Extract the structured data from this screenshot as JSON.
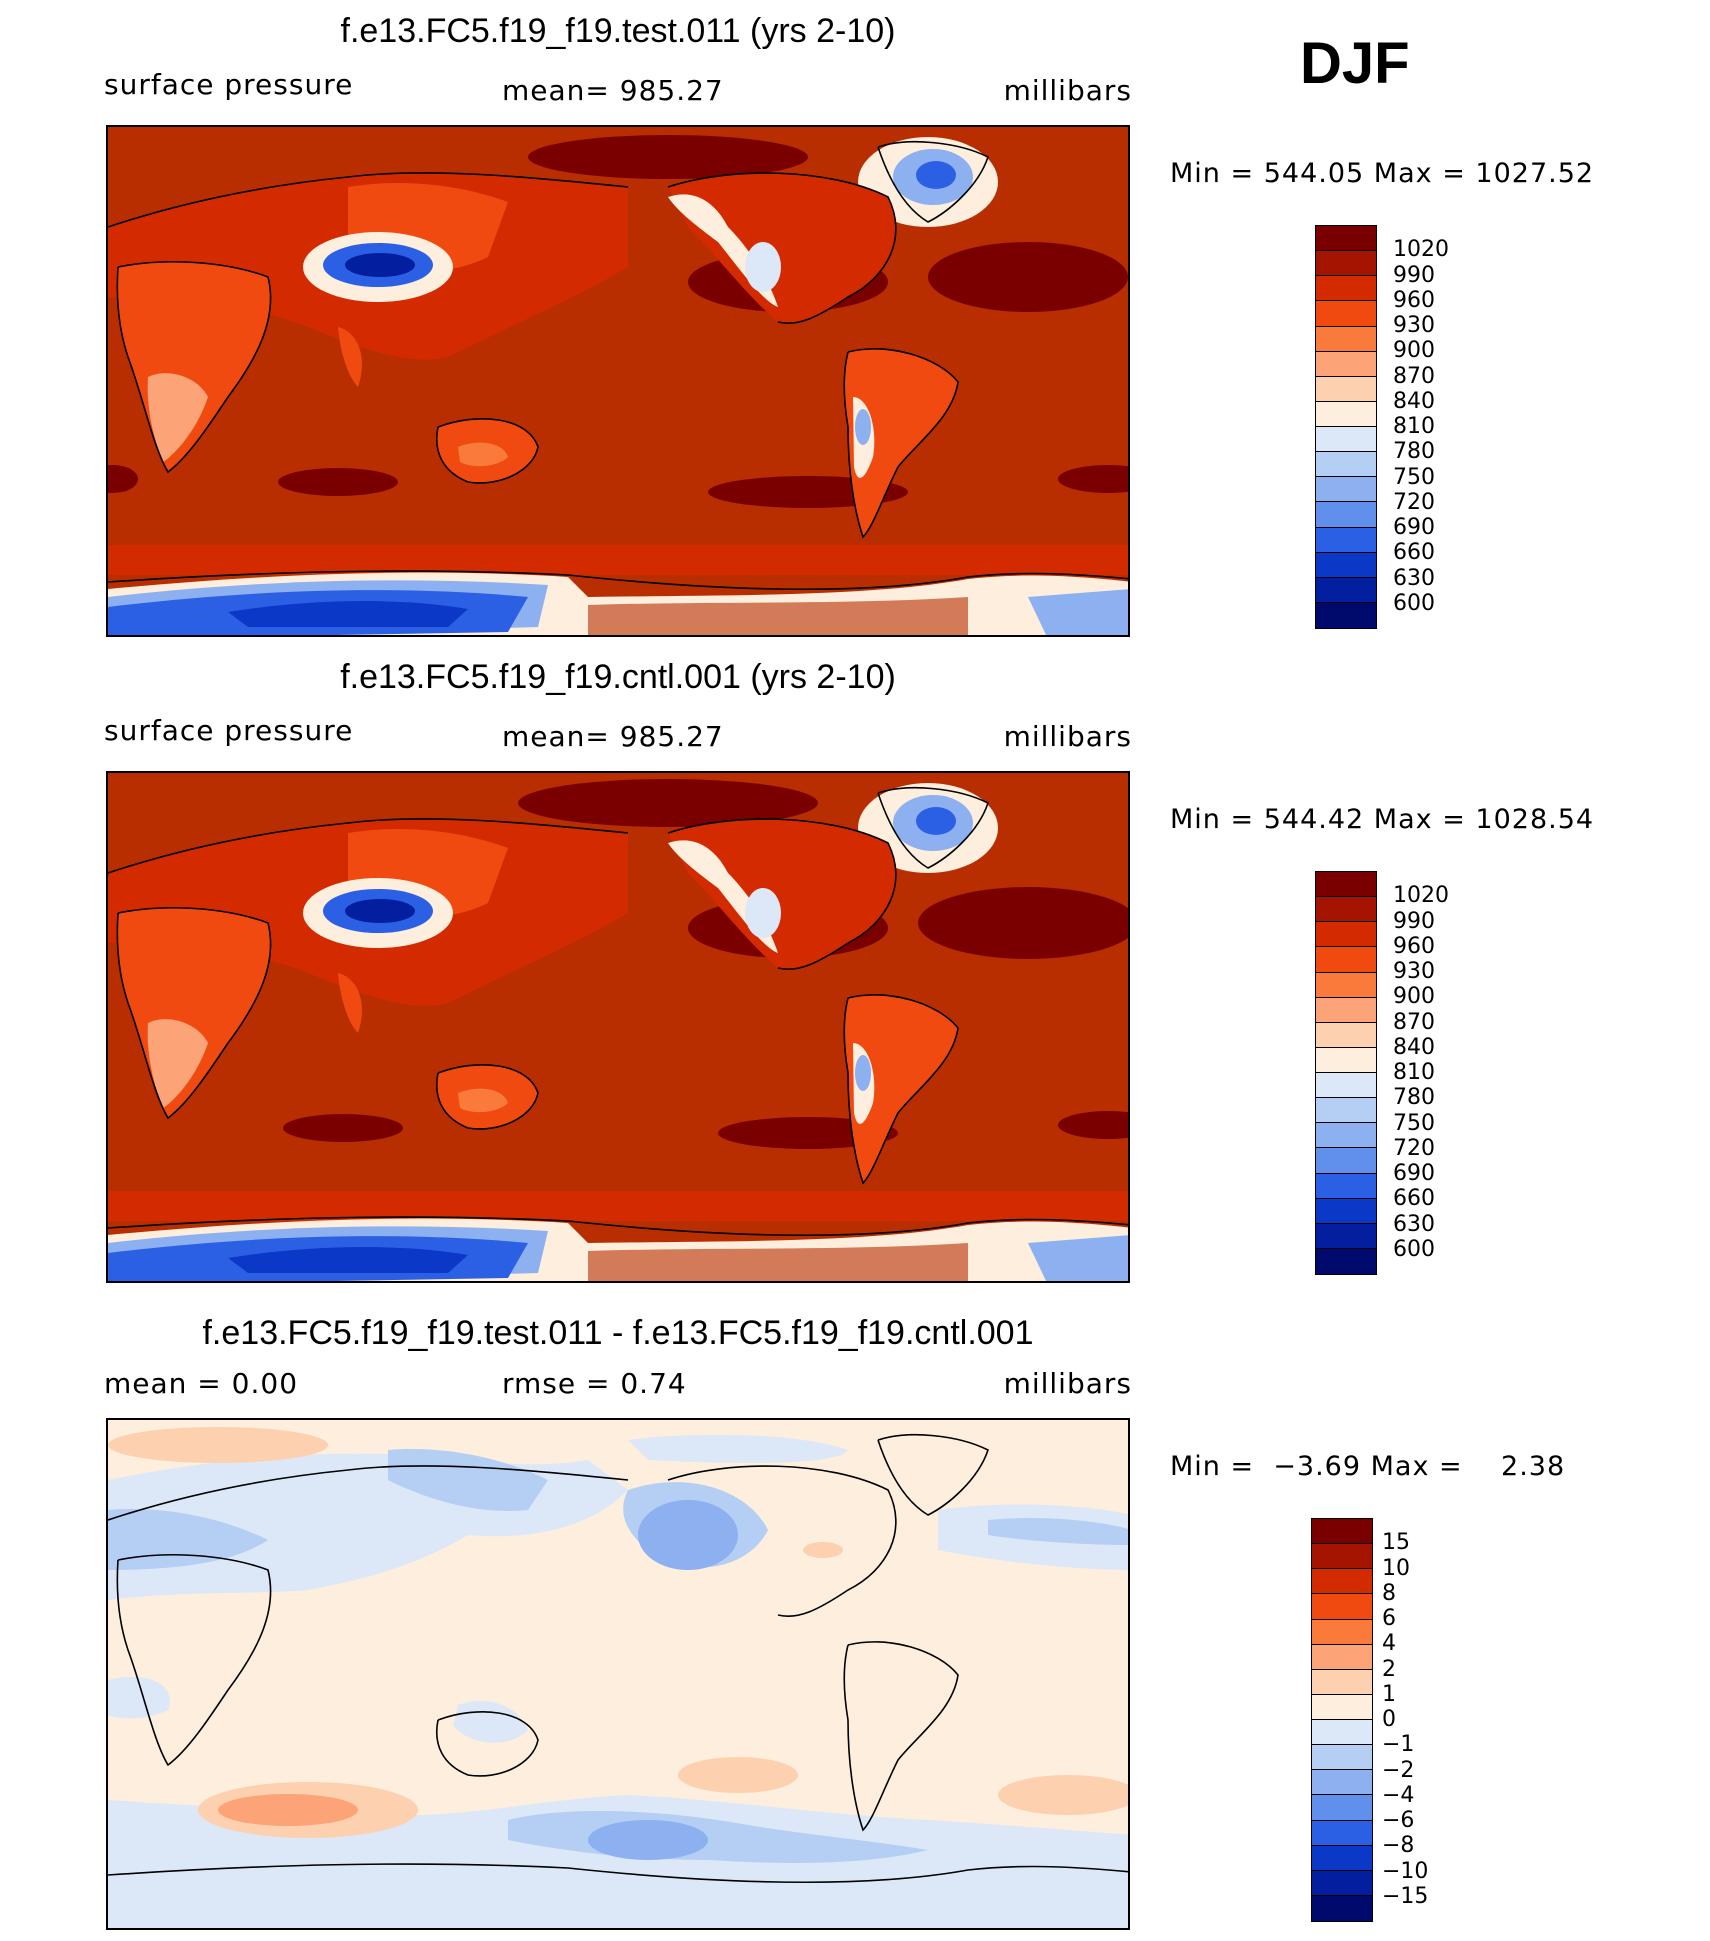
{
  "season": "DJF",
  "units": "millibars",
  "panels": [
    {
      "title": "f.e13.FC5.f19_f19.test.011 (yrs 2-10)",
      "left_label": "surface pressure",
      "center_label": "mean= 985.27",
      "right_label": "millibars",
      "min_label": "Min",
      "min_value": "544.05",
      "max_label": "Max",
      "max_value": "1027.52",
      "colorbar_labels": [
        "1020",
        "990",
        "960",
        "930",
        "900",
        "870",
        "840",
        "810",
        "780",
        "750",
        "720",
        "690",
        "660",
        "630",
        "600"
      ]
    },
    {
      "title": "f.e13.FC5.f19_f19.cntl.001 (yrs 2-10)",
      "left_label": "surface pressure",
      "center_label": "mean= 985.27",
      "right_label": "millibars",
      "min_label": "Min",
      "min_value": "544.42",
      "max_label": "Max",
      "max_value": "1028.54",
      "colorbar_labels": [
        "1020",
        "990",
        "960",
        "930",
        "900",
        "870",
        "840",
        "810",
        "780",
        "750",
        "720",
        "690",
        "660",
        "630",
        "600"
      ]
    },
    {
      "title": "f.e13.FC5.f19_f19.test.011 - f.e13.FC5.f19_f19.cntl.001",
      "left_label": "mean =    0.00",
      "center_label": "rmse =    0.74",
      "right_label": "millibars",
      "min_label": "Min",
      "min_value": "−3.69",
      "max_label": "Max",
      "max_value": "2.38",
      "colorbar_labels": [
        "15",
        "10",
        "8",
        "6",
        "4",
        "2",
        "1",
        "0",
        "−1",
        "−2",
        "−4",
        "−6",
        "−8",
        "−10",
        "−15"
      ]
    }
  ],
  "colors": {
    "abs_palette": [
      "#7a0000",
      "#a51400",
      "#d42a00",
      "#f04a10",
      "#fa7a3c",
      "#fca478",
      "#fdd0b0",
      "#fdeedd",
      "#dce8f8",
      "#b4cef4",
      "#8cb0f0",
      "#6090ec",
      "#2c60e4",
      "#0c38c8",
      "#041ea0",
      "#000a6c"
    ],
    "diff_palette": [
      "#7a0000",
      "#a51400",
      "#d42a00",
      "#f04a10",
      "#fa7a3c",
      "#fca478",
      "#fdd0b0",
      "#fdeedd",
      "#dce8f8",
      "#b4cef4",
      "#8cb0f0",
      "#6090ec",
      "#2c60e4",
      "#0c38c8",
      "#041ea0",
      "#000a6c"
    ],
    "ocean_abs": "#b82e00",
    "ocean_diff": "#fdeedd"
  },
  "chart_data": [
    {
      "type": "heatmap",
      "title": "f.e13.FC5.f19_f19.test.011 (yrs 2-10)",
      "variable": "surface pressure",
      "units": "millibars",
      "season": "DJF",
      "mean": 985.27,
      "min": 544.05,
      "max": 1027.52,
      "contour_levels": [
        600,
        630,
        660,
        690,
        720,
        750,
        780,
        810,
        840,
        870,
        900,
        930,
        960,
        990,
        1020
      ]
    },
    {
      "type": "heatmap",
      "title": "f.e13.FC5.f19_f19.cntl.001 (yrs 2-10)",
      "variable": "surface pressure",
      "units": "millibars",
      "season": "DJF",
      "mean": 985.27,
      "min": 544.42,
      "max": 1028.54,
      "contour_levels": [
        600,
        630,
        660,
        690,
        720,
        750,
        780,
        810,
        840,
        870,
        900,
        930,
        960,
        990,
        1020
      ]
    },
    {
      "type": "heatmap",
      "title": "f.e13.FC5.f19_f19.test.011 - f.e13.FC5.f19_f19.cntl.001",
      "units": "millibars",
      "season": "DJF",
      "mean": 0.0,
      "rmse": 0.74,
      "min": -3.69,
      "max": 2.38,
      "contour_levels": [
        -15,
        -10,
        -8,
        -6,
        -4,
        -2,
        -1,
        0,
        1,
        2,
        4,
        6,
        8,
        10,
        15
      ]
    }
  ]
}
